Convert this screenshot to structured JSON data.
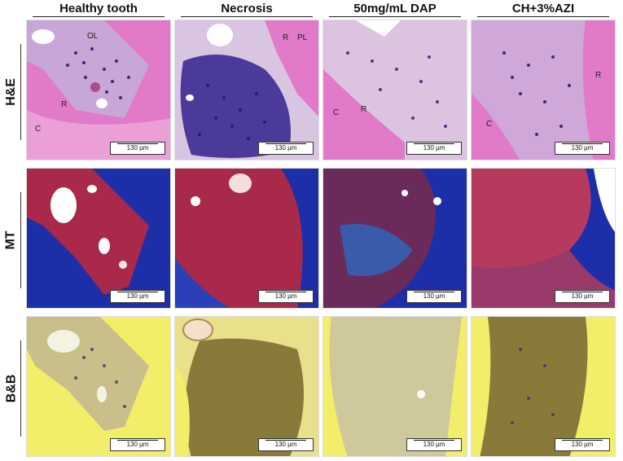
{
  "columns": [
    "Healthy tooth",
    "Necrosis",
    "50mg/mL DAP",
    "CH+3%AZI"
  ],
  "rows": [
    "H&E",
    "MT",
    "B&B"
  ],
  "scale_bar": "130 µm",
  "tissue_labels": {
    "he_healthy": [
      "OL",
      "R",
      "C"
    ],
    "he_necrosis": [
      "R",
      "PL"
    ],
    "he_dap": [
      "C",
      "R"
    ],
    "he_azi": [
      "R",
      "C"
    ]
  },
  "colors": {
    "he_bg": "#e07ac9",
    "he_tissue": "#c9a6d8",
    "he_nuclei": "#3a2a78",
    "mt_bg": "#1c2fa8",
    "mt_tissue": "#a8294a",
    "bb_bg": "#f2ee6a",
    "bb_tissue": "#8a7a3a"
  }
}
